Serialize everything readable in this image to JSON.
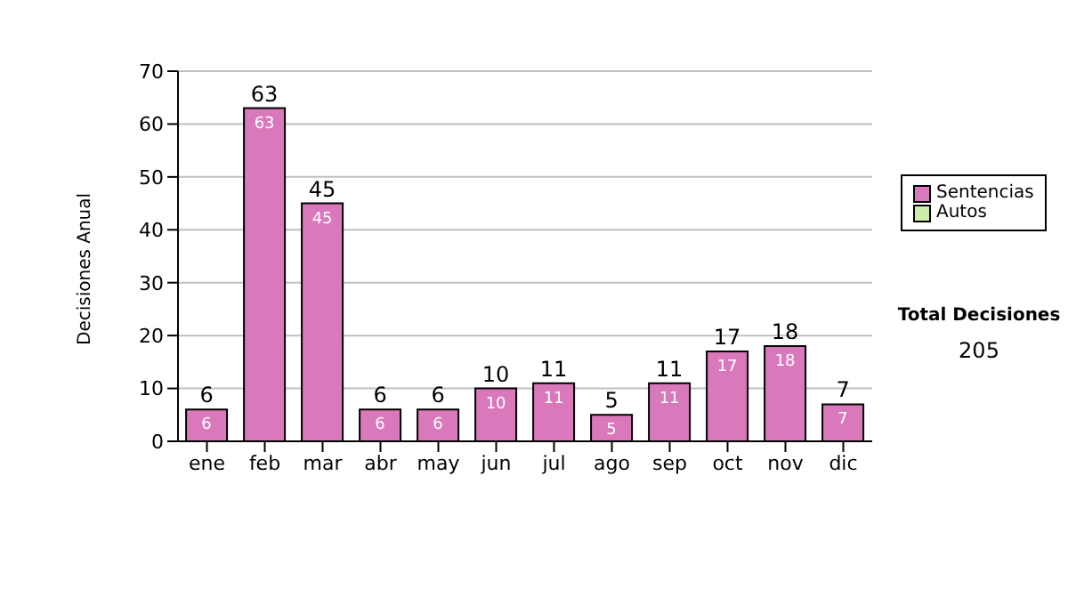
{
  "chart_data": {
    "type": "bar",
    "ylabel": "Decisiones Anual",
    "categories": [
      "ene",
      "feb",
      "mar",
      "abr",
      "may",
      "jun",
      "jul",
      "ago",
      "sep",
      "oct",
      "nov",
      "dic"
    ],
    "series": [
      {
        "name": "Sentencias",
        "color": "#d978bb",
        "values": [
          6,
          63,
          45,
          6,
          6,
          10,
          11,
          5,
          11,
          17,
          18,
          7
        ],
        "value_labels": [
          "6",
          "63",
          "45",
          "6",
          "6",
          "10",
          "11",
          "5",
          "11",
          "17",
          "18",
          "7"
        ]
      },
      {
        "name": "Autos",
        "color": "#cceeaa",
        "values": [
          0,
          0,
          0,
          0,
          0,
          0,
          0,
          0,
          0,
          0,
          0,
          0
        ]
      }
    ],
    "stacked": true,
    "totals": [
      "6",
      "63",
      "45",
      "6",
      "6",
      "10",
      "11",
      "5",
      "11",
      "17",
      "18",
      "7"
    ],
    "ylim": [
      0,
      70
    ],
    "yticks": [
      0,
      10,
      20,
      30,
      40,
      50,
      60,
      70
    ],
    "grid": "y",
    "legend": "right",
    "annotations": [
      "Total Decisiones",
      "205"
    ]
  }
}
